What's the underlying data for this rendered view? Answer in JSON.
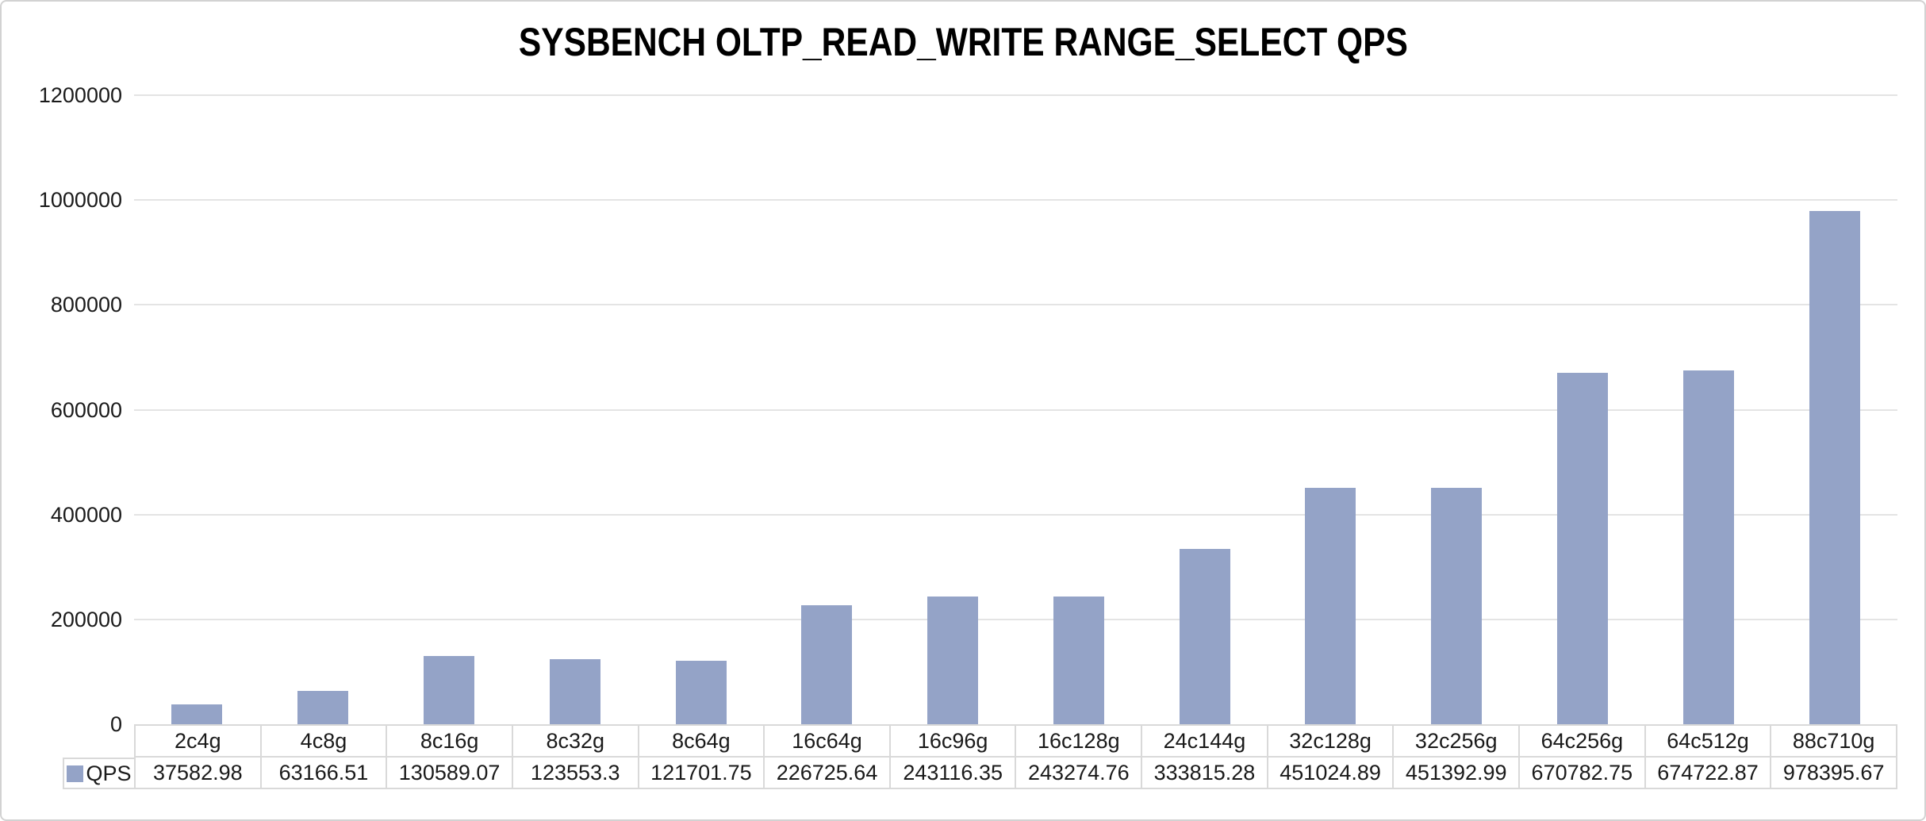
{
  "chart_data": {
    "type": "bar",
    "title": "SYSBENCH OLTP_READ_WRITE RANGE_SELECT QPS",
    "categories": [
      "2c4g",
      "4c8g",
      "8c16g",
      "8c32g",
      "8c64g",
      "16c64g",
      "16c96g",
      "16c128g",
      "24c144g",
      "32c128g",
      "32c256g",
      "64c256g",
      "64c512g",
      "88c710g"
    ],
    "series": [
      {
        "name": "QPS",
        "values": [
          37582.98,
          63166.51,
          130589.07,
          123553.3,
          121701.75,
          226725.64,
          243116.35,
          243274.76,
          333815.28,
          451024.89,
          451392.99,
          670782.75,
          674722.87,
          978395.67
        ],
        "values_display": [
          "37582.98",
          "63166.51",
          "130589.07",
          "123553.3",
          "121701.75",
          "226725.64",
          "243116.35",
          "243274.76",
          "333815.28",
          "451024.89",
          "451392.99",
          "670782.75",
          "674722.87",
          "978395.67"
        ]
      }
    ],
    "ylim": [
      0,
      1200000
    ],
    "y_ticks": [
      0,
      200000,
      400000,
      600000,
      800000,
      1000000,
      1200000
    ],
    "y_tick_labels": [
      "0",
      "200000",
      "400000",
      "600000",
      "800000",
      "1000000",
      "1200000"
    ],
    "grid": true,
    "legend_position": "bottom-table-left",
    "colors": {
      "bar": "#94a3c7",
      "gridline": "#e4e4e4",
      "table_border": "#d9d9d9",
      "text": "#1a1a1a",
      "title_text": "#000000"
    }
  }
}
